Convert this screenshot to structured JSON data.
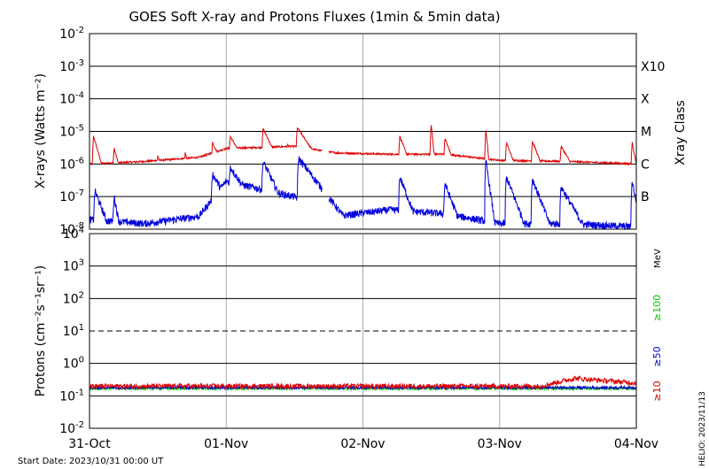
{
  "title": "GOES Soft X-ray and Protons Fluxes   (1min & 5min data)",
  "start_date": "Start Date: 2023/10/31 00:00 UT",
  "credit": "HELIO: 2023/11/13",
  "chart_data": [
    {
      "type": "line",
      "panel": "xray",
      "ylabel": "X-rays (Watts m⁻²)",
      "yscale": "log",
      "ylim": [
        1e-08,
        0.01
      ],
      "y_ticks": [
        {
          "base": "10",
          "exp": "-8"
        },
        {
          "base": "10",
          "exp": "-7"
        },
        {
          "base": "10",
          "exp": "-6"
        },
        {
          "base": "10",
          "exp": "-5"
        },
        {
          "base": "10",
          "exp": "-4"
        },
        {
          "base": "10",
          "exp": "-3"
        },
        {
          "base": "10",
          "exp": "-2"
        }
      ],
      "right_axis_label": "Xray Class",
      "flare_classes": [
        {
          "label": "B",
          "level": 1e-07
        },
        {
          "label": "C",
          "level": 1e-06
        },
        {
          "label": "M",
          "level": 1e-05
        },
        {
          "label": "X",
          "level": 0.0001
        },
        {
          "label": "X10",
          "level": 0.001
        }
      ],
      "x_range_days": [
        0,
        4
      ],
      "series": [
        {
          "color": "#dd0000",
          "gaps": [
            [
              1.7,
              1.75
            ]
          ],
          "background": [
            [
              0,
              1e-06
            ],
            [
              0.4,
              1.2e-06
            ],
            [
              0.8,
              1.6e-06
            ],
            [
              1.0,
              3e-06
            ],
            [
              1.5,
              3.5e-06
            ],
            [
              1.8,
              2.2e-06
            ],
            [
              2.2,
              2e-06
            ],
            [
              2.6,
              2e-06
            ],
            [
              3.0,
              1.3e-06
            ],
            [
              3.5,
              1.2e-06
            ],
            [
              4.0,
              1e-06
            ]
          ],
          "events": [
            {
              "t": 0.03,
              "peak": 7e-06,
              "w": 0.03
            },
            {
              "t": 0.18,
              "peak": 3e-06,
              "w": 0.03
            },
            {
              "t": 0.5,
              "peak": 1.8e-06,
              "w": 0.03
            },
            {
              "t": 0.7,
              "peak": 2.2e-06,
              "w": 0.03
            },
            {
              "t": 0.9,
              "peak": 4.5e-06,
              "w": 0.05
            },
            {
              "t": 1.03,
              "peak": 7e-06,
              "w": 0.06
            },
            {
              "t": 1.27,
              "peak": 1.2e-05,
              "w": 0.05
            },
            {
              "t": 1.45,
              "peak": 4e-06,
              "w": 0.04
            },
            {
              "t": 1.52,
              "peak": 1.3e-05,
              "w": 0.07
            },
            {
              "t": 2.27,
              "peak": 7e-06,
              "w": 0.04
            },
            {
              "t": 2.5,
              "peak": 1.6e-05,
              "w": 0.01
            },
            {
              "t": 2.6,
              "peak": 6e-06,
              "w": 0.04
            },
            {
              "t": 2.9,
              "peak": 1.1e-05,
              "w": 0.01
            },
            {
              "t": 3.05,
              "peak": 4.5e-06,
              "w": 0.04
            },
            {
              "t": 3.24,
              "peak": 5e-06,
              "w": 0.04
            },
            {
              "t": 3.45,
              "peak": 3.5e-06,
              "w": 0.06
            },
            {
              "t": 3.97,
              "peak": 4.5e-06,
              "w": 0.02
            }
          ]
        },
        {
          "color": "#0000dd",
          "gaps": [
            [
              1.7,
              1.75
            ]
          ],
          "background": [
            [
              0,
              2e-08
            ],
            [
              0.4,
              1.5e-08
            ],
            [
              0.8,
              2.5e-08
            ],
            [
              1.0,
              3e-07
            ],
            [
              1.5,
              1e-07
            ],
            [
              1.8,
              2.5e-08
            ],
            [
              2.2,
              4e-08
            ],
            [
              2.6,
              3e-08
            ],
            [
              3.0,
              1.5e-08
            ],
            [
              3.5,
              1.5e-08
            ],
            [
              4.0,
              1.2e-08
            ]
          ],
          "events": [
            {
              "t": 0.04,
              "peak": 1.5e-07,
              "w": 0.04
            },
            {
              "t": 0.18,
              "peak": 1e-07,
              "w": 0.02
            },
            {
              "t": 0.9,
              "peak": 5e-07,
              "w": 0.06
            },
            {
              "t": 1.03,
              "peak": 8e-07,
              "w": 0.07
            },
            {
              "t": 1.27,
              "peak": 1.2e-06,
              "w": 0.05
            },
            {
              "t": 1.53,
              "peak": 1.5e-06,
              "w": 0.08
            },
            {
              "t": 2.27,
              "peak": 4e-07,
              "w": 0.04
            },
            {
              "t": 2.6,
              "peak": 2.5e-07,
              "w": 0.04
            },
            {
              "t": 2.9,
              "peak": 1.2e-06,
              "w": 0.015
            },
            {
              "t": 3.05,
              "peak": 4e-07,
              "w": 0.04
            },
            {
              "t": 3.24,
              "peak": 3.5e-07,
              "w": 0.04
            },
            {
              "t": 3.45,
              "peak": 2e-07,
              "w": 0.06
            },
            {
              "t": 3.97,
              "peak": 3e-07,
              "w": 0.02
            }
          ]
        }
      ]
    },
    {
      "type": "line",
      "panel": "protons",
      "ylabel": "Protons (cm⁻²s⁻¹sr⁻¹)",
      "yscale": "log",
      "ylim": [
        0.01,
        10000
      ],
      "y_ticks": [
        {
          "base": "10",
          "exp": "-2"
        },
        {
          "base": "10",
          "exp": "-1"
        },
        {
          "base": "10",
          "exp": "0"
        },
        {
          "base": "10",
          "exp": "1"
        },
        {
          "base": "10",
          "exp": "2"
        },
        {
          "base": "10",
          "exp": "3"
        },
        {
          "base": "10",
          "exp": "4"
        }
      ],
      "threshold": 10,
      "unit_label": "MeV",
      "x_range_days": [
        0,
        4
      ],
      "series": [
        {
          "name": "≥10",
          "color": "#dd0000",
          "level": [
            [
              0,
              0.2
            ],
            [
              3.3,
              0.2
            ],
            [
              3.55,
              0.35
            ],
            [
              3.75,
              0.3
            ],
            [
              4.0,
              0.25
            ]
          ]
        },
        {
          "name": "≥50",
          "color": "#0000cc",
          "level": [
            [
              0,
              0.18
            ],
            [
              4.0,
              0.18
            ]
          ]
        },
        {
          "name": "≥100",
          "color": "#00cc00",
          "level": [
            [
              0,
              0.17
            ],
            [
              4.0,
              0.17
            ]
          ]
        }
      ]
    }
  ],
  "x_tick_labels": [
    "31-Oct",
    "01-Nov",
    "02-Nov",
    "03-Nov",
    "04-Nov"
  ]
}
